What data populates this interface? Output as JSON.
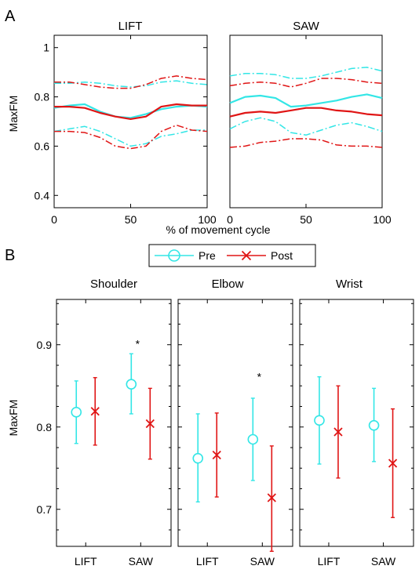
{
  "figure": {
    "label_a": "A",
    "label_b": "B",
    "colors": {
      "pre": "#33e6e6",
      "post": "#e01515",
      "axis": "#000000"
    }
  },
  "chart_data": [
    {
      "type": "line",
      "panel": "A",
      "title": "LIFT",
      "xlabel": "% of movement cycle",
      "ylabel": "MaxFM",
      "xlim": [
        0,
        100
      ],
      "ylim": [
        0.35,
        1.05
      ],
      "xticks": [
        "0",
        "50",
        "100"
      ],
      "yticks": [
        "0.4",
        "0.6",
        "0.8",
        "1"
      ],
      "series": [
        {
          "group": "pre",
          "style": "mean",
          "x": [
            0,
            10,
            20,
            30,
            40,
            50,
            60,
            70,
            80,
            90,
            100
          ],
          "y": [
            0.755,
            0.765,
            0.77,
            0.74,
            0.72,
            0.715,
            0.73,
            0.75,
            0.76,
            0.765,
            0.76
          ]
        },
        {
          "group": "pre",
          "style": "band",
          "x": [
            0,
            10,
            20,
            30,
            40,
            50,
            60,
            70,
            80,
            90,
            100
          ],
          "y": [
            0.855,
            0.855,
            0.86,
            0.855,
            0.845,
            0.84,
            0.845,
            0.86,
            0.865,
            0.855,
            0.85
          ]
        },
        {
          "group": "pre",
          "style": "band",
          "x": [
            0,
            10,
            20,
            30,
            40,
            50,
            60,
            70,
            80,
            90,
            100
          ],
          "y": [
            0.66,
            0.67,
            0.68,
            0.66,
            0.63,
            0.6,
            0.61,
            0.64,
            0.65,
            0.665,
            0.665
          ]
        },
        {
          "group": "post",
          "style": "mean",
          "x": [
            0,
            10,
            20,
            30,
            40,
            50,
            60,
            70,
            80,
            90,
            100
          ],
          "y": [
            0.76,
            0.76,
            0.755,
            0.735,
            0.72,
            0.71,
            0.72,
            0.76,
            0.77,
            0.765,
            0.765
          ]
        },
        {
          "group": "post",
          "style": "band",
          "x": [
            0,
            10,
            20,
            30,
            40,
            50,
            60,
            70,
            80,
            90,
            100
          ],
          "y": [
            0.86,
            0.86,
            0.85,
            0.84,
            0.835,
            0.835,
            0.85,
            0.875,
            0.885,
            0.875,
            0.87
          ]
        },
        {
          "group": "post",
          "style": "band",
          "x": [
            0,
            10,
            20,
            30,
            40,
            50,
            60,
            70,
            80,
            90,
            100
          ],
          "y": [
            0.66,
            0.66,
            0.655,
            0.635,
            0.6,
            0.59,
            0.6,
            0.66,
            0.685,
            0.665,
            0.66
          ]
        }
      ]
    },
    {
      "type": "line",
      "panel": "A",
      "title": "SAW",
      "xlabel": "% of movement cycle",
      "ylabel": "",
      "xlim": [
        0,
        100
      ],
      "ylim": [
        0.35,
        1.05
      ],
      "xticks": [
        "0",
        "50",
        "100"
      ],
      "yticks": [],
      "series": [
        {
          "group": "pre",
          "style": "mean",
          "x": [
            0,
            10,
            20,
            30,
            40,
            50,
            60,
            70,
            80,
            90,
            100
          ],
          "y": [
            0.775,
            0.8,
            0.805,
            0.795,
            0.76,
            0.765,
            0.775,
            0.785,
            0.8,
            0.81,
            0.795
          ]
        },
        {
          "group": "pre",
          "style": "band",
          "x": [
            0,
            10,
            20,
            30,
            40,
            50,
            60,
            70,
            80,
            90,
            100
          ],
          "y": [
            0.885,
            0.895,
            0.895,
            0.89,
            0.875,
            0.875,
            0.885,
            0.9,
            0.915,
            0.92,
            0.905
          ]
        },
        {
          "group": "pre",
          "style": "band",
          "x": [
            0,
            10,
            20,
            30,
            40,
            50,
            60,
            70,
            80,
            90,
            100
          ],
          "y": [
            0.67,
            0.7,
            0.715,
            0.7,
            0.655,
            0.645,
            0.665,
            0.685,
            0.695,
            0.68,
            0.66
          ]
        },
        {
          "group": "post",
          "style": "mean",
          "x": [
            0,
            10,
            20,
            30,
            40,
            50,
            60,
            70,
            80,
            90,
            100
          ],
          "y": [
            0.72,
            0.735,
            0.74,
            0.735,
            0.745,
            0.755,
            0.755,
            0.745,
            0.74,
            0.73,
            0.725
          ]
        },
        {
          "group": "post",
          "style": "band",
          "x": [
            0,
            10,
            20,
            30,
            40,
            50,
            60,
            70,
            80,
            90,
            100
          ],
          "y": [
            0.845,
            0.855,
            0.86,
            0.855,
            0.84,
            0.855,
            0.875,
            0.875,
            0.87,
            0.86,
            0.855
          ]
        },
        {
          "group": "post",
          "style": "band",
          "x": [
            0,
            10,
            20,
            30,
            40,
            50,
            60,
            70,
            80,
            90,
            100
          ],
          "y": [
            0.595,
            0.6,
            0.615,
            0.62,
            0.63,
            0.63,
            0.625,
            0.605,
            0.6,
            0.6,
            0.595
          ]
        }
      ]
    },
    {
      "type": "scatter",
      "panel": "B",
      "title": "Shoulder",
      "ylabel": "MaxFM",
      "ylim": [
        0.655,
        0.955
      ],
      "yticks": [
        "0.7",
        "0.8",
        "0.9"
      ],
      "categories": [
        "LIFT",
        "SAW"
      ],
      "series": [
        {
          "name": "Pre",
          "marker": "circle",
          "values": [
            0.818,
            0.852
          ],
          "lower": [
            0.78,
            0.816
          ],
          "upper": [
            0.856,
            0.889
          ]
        },
        {
          "name": "Post",
          "marker": "x",
          "values": [
            0.819,
            0.804
          ],
          "lower": [
            0.778,
            0.761
          ],
          "upper": [
            0.86,
            0.847
          ]
        }
      ],
      "annotations": [
        {
          "category": "SAW",
          "text": "*",
          "y": 0.902
        }
      ]
    },
    {
      "type": "scatter",
      "panel": "B",
      "title": "Elbow",
      "ylabel": "",
      "ylim": [
        0.655,
        0.955
      ],
      "yticks": [],
      "categories": [
        "LIFT",
        "SAW"
      ],
      "series": [
        {
          "name": "Pre",
          "marker": "circle",
          "values": [
            0.762,
            0.785
          ],
          "lower": [
            0.709,
            0.735
          ],
          "upper": [
            0.816,
            0.835
          ]
        },
        {
          "name": "Post",
          "marker": "x",
          "values": [
            0.766,
            0.714
          ],
          "lower": [
            0.715,
            0.649
          ],
          "upper": [
            0.817,
            0.777
          ]
        }
      ],
      "annotations": [
        {
          "category": "SAW",
          "text": "*",
          "y": 0.862
        }
      ]
    },
    {
      "type": "scatter",
      "panel": "B",
      "title": "Wrist",
      "ylabel": "",
      "ylim": [
        0.655,
        0.955
      ],
      "yticks": [],
      "categories": [
        "LIFT",
        "SAW"
      ],
      "series": [
        {
          "name": "Pre",
          "marker": "circle",
          "values": [
            0.808,
            0.802
          ],
          "lower": [
            0.755,
            0.758
          ],
          "upper": [
            0.861,
            0.847
          ]
        },
        {
          "name": "Post",
          "marker": "x",
          "values": [
            0.794,
            0.756
          ],
          "lower": [
            0.738,
            0.69
          ],
          "upper": [
            0.85,
            0.822
          ]
        }
      ],
      "annotations": []
    }
  ],
  "legend": {
    "placement": "top-center",
    "items": [
      "Pre",
      "Post"
    ]
  }
}
